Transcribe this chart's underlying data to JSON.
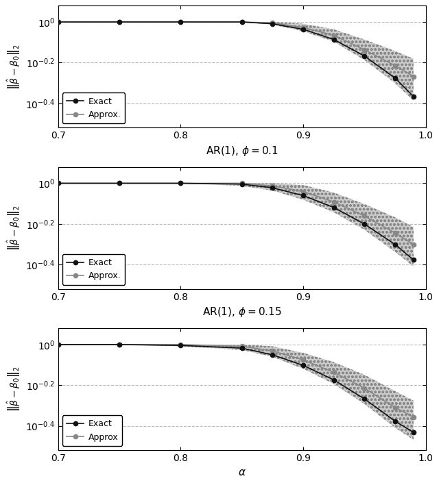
{
  "alpha_values": [
    0.7,
    0.75,
    0.8,
    0.85,
    0.875,
    0.9,
    0.925,
    0.95,
    0.975,
    0.99
  ],
  "panels": [
    {
      "xlabel": "AR(1), $\\phi = 0.1$",
      "exact_y": [
        1.0,
        1.0,
        1.0,
        1.0,
        0.98,
        0.92,
        0.82,
        0.68,
        0.53,
        0.43
      ],
      "approx_y": [
        1.0,
        1.0,
        1.0,
        1.0,
        0.99,
        0.94,
        0.86,
        0.73,
        0.61,
        0.54
      ],
      "approx_lower": [
        1.0,
        1.0,
        1.0,
        1.0,
        0.97,
        0.9,
        0.8,
        0.65,
        0.5,
        0.41
      ],
      "approx_upper": [
        1.0,
        1.0,
        1.0,
        1.0,
        1.0,
        0.98,
        0.92,
        0.82,
        0.72,
        0.66
      ],
      "legend_label_exact": "Exact",
      "legend_label_approx": "Approx.",
      "ylim_log": [
        -0.52,
        0.08
      ],
      "ytick_exponents": [
        0,
        -0.2,
        -0.4
      ],
      "ylabel": "$\\left\\|\\hat{\\beta} - \\beta_0\\right\\|_2$"
    },
    {
      "xlabel": "AR(1), $\\phi = 0.15$",
      "exact_y": [
        1.0,
        1.0,
        1.0,
        0.99,
        0.95,
        0.87,
        0.76,
        0.63,
        0.5,
        0.42
      ],
      "approx_y": [
        1.0,
        1.0,
        1.0,
        1.0,
        0.97,
        0.91,
        0.81,
        0.69,
        0.57,
        0.5
      ],
      "approx_lower": [
        1.0,
        1.0,
        1.0,
        0.97,
        0.92,
        0.83,
        0.72,
        0.59,
        0.46,
        0.39
      ],
      "approx_upper": [
        1.0,
        1.0,
        1.0,
        1.0,
        1.0,
        0.98,
        0.9,
        0.79,
        0.68,
        0.61
      ],
      "legend_label_exact": "Exact",
      "legend_label_approx": "Approx.",
      "ylim_log": [
        -0.52,
        0.08
      ],
      "ytick_exponents": [
        0,
        -0.2,
        -0.4
      ],
      "ylabel": "$\\left\\|\\hat{\\beta} - \\beta_0\\right\\|_2$"
    },
    {
      "xlabel": "$\\alpha$",
      "exact_y": [
        1.0,
        1.0,
        0.99,
        0.96,
        0.89,
        0.79,
        0.67,
        0.54,
        0.42,
        0.37
      ],
      "approx_y": [
        1.0,
        1.0,
        1.0,
        0.98,
        0.93,
        0.84,
        0.73,
        0.61,
        0.49,
        0.44
      ],
      "approx_lower": [
        1.0,
        1.0,
        0.98,
        0.94,
        0.87,
        0.76,
        0.64,
        0.51,
        0.39,
        0.34
      ],
      "approx_upper": [
        1.0,
        1.0,
        1.0,
        1.0,
        0.98,
        0.91,
        0.82,
        0.71,
        0.59,
        0.53
      ],
      "legend_label_exact": "Exact",
      "legend_label_approx": "Approx",
      "ylim_log": [
        -0.52,
        0.08
      ],
      "ytick_exponents": [
        0,
        -0.2,
        -0.4
      ],
      "ylabel": "$\\left\\|\\hat{\\beta} - \\beta_0\\right\\|_2$"
    }
  ],
  "alpha_ticks": [
    0.7,
    0.8,
    0.9,
    1.0
  ],
  "exact_color": "#111111",
  "approx_color": "#888888",
  "band_face_color": "#cccccc",
  "band_edge_color": "#888888",
  "figure_bgcolor": "white",
  "grid_color": "#bbbbbb",
  "figure_width": 6.4,
  "figure_height": 7.05,
  "dpi": 100
}
